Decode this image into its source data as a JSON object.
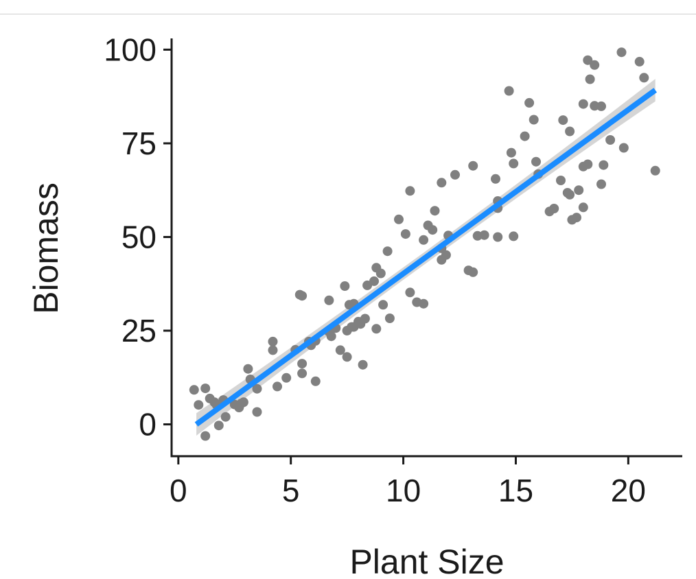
{
  "chart_data": {
    "type": "scatter",
    "title": "",
    "xlabel": "Plant Size",
    "ylabel": "Biomass",
    "xlim": [
      -0.3,
      22.4
    ],
    "ylim": [
      -8.5,
      103
    ],
    "x_ticks": [
      0,
      5,
      10,
      15,
      20
    ],
    "y_ticks": [
      0,
      25,
      50,
      75,
      100
    ],
    "grid": false,
    "legend": "none",
    "colors": {
      "points": "#808080",
      "fit_line": "#1a8cff",
      "confidence_band": "#d0d0d0",
      "axis": "#1a1a1a"
    },
    "points": [
      [
        0.7,
        9.2
      ],
      [
        0.9,
        5.2
      ],
      [
        1.2,
        -3.1
      ],
      [
        1.2,
        9.6
      ],
      [
        1.4,
        6.9
      ],
      [
        1.6,
        5.9
      ],
      [
        1.7,
        5.2
      ],
      [
        1.8,
        -0.3
      ],
      [
        2.0,
        6.5
      ],
      [
        2.1,
        2.0
      ],
      [
        2.5,
        5.3
      ],
      [
        2.7,
        4.5
      ],
      [
        2.8,
        5.6
      ],
      [
        2.9,
        5.9
      ],
      [
        3.1,
        14.8
      ],
      [
        3.2,
        12.0
      ],
      [
        3.5,
        3.3
      ],
      [
        3.5,
        9.5
      ],
      [
        4.2,
        22.1
      ],
      [
        4.2,
        19.8
      ],
      [
        4.4,
        10.1
      ],
      [
        4.8,
        12.4
      ],
      [
        5.2,
        19.9
      ],
      [
        5.4,
        34.6
      ],
      [
        5.5,
        34.3
      ],
      [
        5.5,
        13.6
      ],
      [
        5.5,
        16.2
      ],
      [
        5.8,
        22.1
      ],
      [
        5.9,
        21.1
      ],
      [
        6.1,
        22.3
      ],
      [
        6.1,
        11.5
      ],
      [
        6.7,
        33.1
      ],
      [
        6.7,
        24.7
      ],
      [
        6.8,
        23.5
      ],
      [
        6.9,
        25.7
      ],
      [
        7.0,
        25.7
      ],
      [
        7.2,
        19.8
      ],
      [
        7.4,
        36.9
      ],
      [
        7.5,
        25.0
      ],
      [
        7.5,
        18.0
      ],
      [
        7.6,
        31.9
      ],
      [
        7.7,
        26.0
      ],
      [
        7.8,
        32.2
      ],
      [
        7.8,
        26.0
      ],
      [
        8.0,
        27.4
      ],
      [
        8.1,
        26.8
      ],
      [
        8.2,
        15.9
      ],
      [
        8.3,
        28.2
      ],
      [
        8.4,
        37.1
      ],
      [
        8.7,
        38.2
      ],
      [
        8.8,
        25.5
      ],
      [
        8.8,
        41.8
      ],
      [
        9.0,
        40.3
      ],
      [
        9.1,
        31.9
      ],
      [
        9.3,
        46.2
      ],
      [
        9.4,
        28.3
      ],
      [
        9.8,
        54.7
      ],
      [
        10.1,
        50.8
      ],
      [
        10.3,
        62.3
      ],
      [
        10.3,
        35.2
      ],
      [
        10.6,
        32.6
      ],
      [
        10.9,
        32.2
      ],
      [
        10.9,
        49.2
      ],
      [
        11.1,
        53.1
      ],
      [
        11.3,
        51.9
      ],
      [
        11.4,
        57.0
      ],
      [
        11.7,
        64.5
      ],
      [
        11.7,
        47.0
      ],
      [
        11.7,
        43.9
      ],
      [
        11.9,
        45.2
      ],
      [
        12.0,
        50.4
      ],
      [
        12.3,
        66.6
      ],
      [
        12.9,
        41.1
      ],
      [
        13.1,
        40.6
      ],
      [
        13.1,
        69.0
      ],
      [
        13.3,
        50.3
      ],
      [
        13.6,
        50.5
      ],
      [
        14.1,
        65.5
      ],
      [
        14.2,
        57.7
      ],
      [
        14.2,
        59.6
      ],
      [
        14.2,
        50.0
      ],
      [
        14.7,
        89.0
      ],
      [
        14.8,
        72.5
      ],
      [
        14.9,
        69.6
      ],
      [
        14.9,
        50.2
      ],
      [
        15.4,
        76.9
      ],
      [
        15.6,
        85.8
      ],
      [
        15.8,
        81.3
      ],
      [
        15.9,
        70.1
      ],
      [
        16.0,
        66.8
      ],
      [
        16.5,
        56.8
      ],
      [
        16.7,
        57.6
      ],
      [
        17.0,
        65.1
      ],
      [
        17.1,
        81.2
      ],
      [
        17.3,
        61.8
      ],
      [
        17.4,
        78.2
      ],
      [
        17.4,
        61.3
      ],
      [
        17.5,
        54.6
      ],
      [
        17.7,
        55.2
      ],
      [
        17.8,
        62.5
      ],
      [
        18.0,
        57.9
      ],
      [
        18.0,
        68.8
      ],
      [
        18.0,
        85.5
      ],
      [
        18.2,
        69.4
      ],
      [
        18.2,
        97.2
      ],
      [
        18.3,
        92.1
      ],
      [
        18.5,
        95.9
      ],
      [
        18.5,
        85.0
      ],
      [
        18.8,
        84.9
      ],
      [
        18.8,
        64.1
      ],
      [
        18.9,
        69.2
      ],
      [
        19.2,
        75.9
      ],
      [
        19.7,
        99.3
      ],
      [
        19.8,
        73.8
      ],
      [
        20.5,
        96.8
      ],
      [
        20.7,
        92.5
      ],
      [
        21.2,
        67.7
      ]
    ],
    "fit": {
      "x_range": [
        0.8,
        21.2
      ],
      "y_range": [
        0.0,
        89.2
      ],
      "band_half_width": 3.0
    }
  }
}
